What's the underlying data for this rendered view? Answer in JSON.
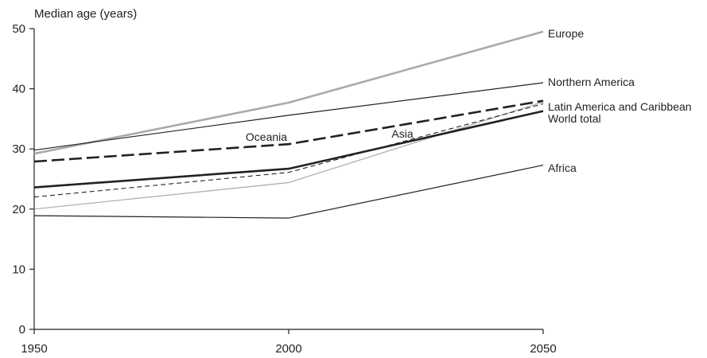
{
  "chart_data": {
    "type": "line",
    "ylabel": "Median age (years)",
    "xlabel": "",
    "x": [
      1950,
      2000,
      2050
    ],
    "xticks": [
      "1950",
      "2000",
      "2050"
    ],
    "ylim": [
      0,
      50
    ],
    "yticks": [
      0,
      10,
      20,
      30,
      40,
      50
    ],
    "grid": false,
    "series": [
      {
        "name": "Europe",
        "values": [
          29.2,
          37.7,
          49.5
        ],
        "color": "#aaaaaa",
        "style": "solid-thick"
      },
      {
        "name": "Northern America",
        "values": [
          29.8,
          35.6,
          41.0
        ],
        "color": "#222222",
        "style": "solid-thin"
      },
      {
        "name": "Latin America and Caribbean",
        "values": [
          20.0,
          24.4,
          37.8
        ],
        "color": "#aaaaaa",
        "style": "solid-thin"
      },
      {
        "name": "World total",
        "values": [
          23.6,
          26.7,
          36.3
        ],
        "color": "#222222",
        "style": "solid-thick"
      },
      {
        "name": "Oceania",
        "values": [
          27.9,
          30.8,
          38.0
        ],
        "color": "#222222",
        "style": "dashed-thick"
      },
      {
        "name": "Asia",
        "values": [
          22.0,
          26.1,
          37.5
        ],
        "color": "#222222",
        "style": "dashed-thin"
      },
      {
        "name": "Africa",
        "values": [
          18.9,
          18.5,
          27.3
        ],
        "color": "#222222",
        "style": "solid-thin"
      }
    ]
  }
}
